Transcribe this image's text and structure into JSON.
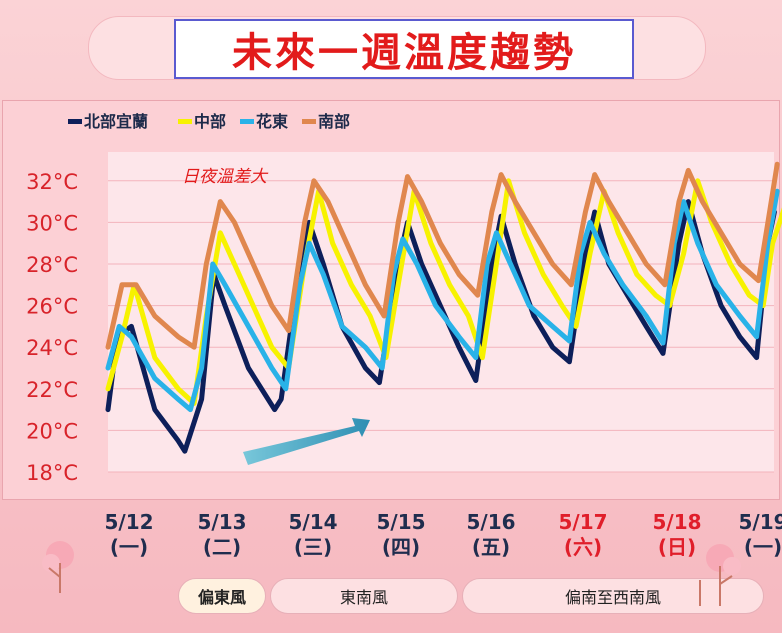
{
  "title": "未來一週溫度趨勢",
  "colors": {
    "north": "#0d1f5a",
    "central": "#f7f200",
    "east": "#29b2e8",
    "south": "#e0874e",
    "title_red": "#e21b1b",
    "weekend_red": "#e01e2a",
    "arrow": "#45a8c6"
  },
  "annotation": "日夜溫差大",
  "dates": [
    {
      "date": "5/12",
      "weekday": "(一)",
      "weekend": false
    },
    {
      "date": "5/13",
      "weekday": "(二)",
      "weekend": false
    },
    {
      "date": "5/14",
      "weekday": "(三)",
      "weekend": false
    },
    {
      "date": "5/15",
      "weekday": "(四)",
      "weekend": false
    },
    {
      "date": "5/16",
      "weekday": "(五)",
      "weekend": false
    },
    {
      "date": "5/17",
      "weekday": "(六)",
      "weekend": true
    },
    {
      "date": "5/18",
      "weekday": "(日)",
      "weekend": true
    },
    {
      "date": "5/19",
      "weekday": "(一)",
      "weekend": false
    }
  ],
  "winds": [
    "偏東風",
    "東南風",
    "偏南至西南風"
  ],
  "chart_data": {
    "type": "line",
    "ylim": [
      18,
      33
    ],
    "y_ticks": [
      "18°C",
      "20°C",
      "22°C",
      "24°C",
      "26°C",
      "28°C",
      "30°C",
      "32°C"
    ],
    "y_tick_values": [
      18,
      20,
      22,
      24,
      26,
      28,
      30,
      32
    ],
    "legend_position": "top-left",
    "x_unit": "day index from 5/12 00:00",
    "series": [
      {
        "name": "北部宜蘭",
        "color_key": "north",
        "points": [
          [
            0,
            21
          ],
          [
            0.1,
            24.5
          ],
          [
            0.25,
            25
          ],
          [
            0.5,
            21
          ],
          [
            0.75,
            19.5
          ],
          [
            0.82,
            19
          ],
          [
            1.0,
            21.5
          ],
          [
            1.13,
            27.5
          ],
          [
            1.25,
            26
          ],
          [
            1.5,
            23
          ],
          [
            1.78,
            21
          ],
          [
            1.85,
            21.5
          ],
          [
            2.05,
            28
          ],
          [
            2.15,
            30
          ],
          [
            2.3,
            28
          ],
          [
            2.5,
            25
          ],
          [
            2.75,
            23
          ],
          [
            2.9,
            22.3
          ],
          [
            3.1,
            28
          ],
          [
            3.2,
            30
          ],
          [
            3.35,
            28
          ],
          [
            3.55,
            26
          ],
          [
            3.75,
            24
          ],
          [
            3.93,
            22.4
          ],
          [
            4.1,
            28
          ],
          [
            4.2,
            30.3
          ],
          [
            4.35,
            28
          ],
          [
            4.55,
            25.5
          ],
          [
            4.75,
            24
          ],
          [
            4.93,
            23.3
          ],
          [
            5.1,
            28.5
          ],
          [
            5.2,
            30.5
          ],
          [
            5.35,
            28
          ],
          [
            5.55,
            26.5
          ],
          [
            5.75,
            25
          ],
          [
            5.93,
            23.7
          ],
          [
            6.1,
            29
          ],
          [
            6.2,
            31
          ],
          [
            6.35,
            28.5
          ],
          [
            6.55,
            26
          ],
          [
            6.75,
            24.5
          ],
          [
            6.93,
            23.5
          ],
          [
            7.05,
            29
          ],
          [
            7.12,
            30.5
          ]
        ]
      },
      {
        "name": "中部",
        "color_key": "central",
        "points": [
          [
            0,
            22
          ],
          [
            0.15,
            24.5
          ],
          [
            0.28,
            27
          ],
          [
            0.5,
            23.5
          ],
          [
            0.75,
            22
          ],
          [
            0.92,
            21.3
          ],
          [
            1.05,
            25.5
          ],
          [
            1.2,
            29.5
          ],
          [
            1.35,
            28
          ],
          [
            1.55,
            26
          ],
          [
            1.75,
            24
          ],
          [
            1.93,
            23
          ],
          [
            2.1,
            28
          ],
          [
            2.25,
            31.5
          ],
          [
            2.4,
            29
          ],
          [
            2.6,
            27
          ],
          [
            2.8,
            25.5
          ],
          [
            2.97,
            23.5
          ],
          [
            3.1,
            27
          ],
          [
            3.27,
            31.5
          ],
          [
            3.45,
            29
          ],
          [
            3.65,
            27
          ],
          [
            3.85,
            25.5
          ],
          [
            4.0,
            23.5
          ],
          [
            4.15,
            28
          ],
          [
            4.28,
            32
          ],
          [
            4.45,
            29.5
          ],
          [
            4.65,
            27.5
          ],
          [
            4.85,
            26
          ],
          [
            5.0,
            25
          ],
          [
            5.15,
            28.5
          ],
          [
            5.3,
            31.5
          ],
          [
            5.45,
            29.5
          ],
          [
            5.65,
            27.5
          ],
          [
            5.85,
            26.5
          ],
          [
            6.0,
            26
          ],
          [
            6.15,
            28.5
          ],
          [
            6.3,
            32
          ],
          [
            6.45,
            30
          ],
          [
            6.65,
            28
          ],
          [
            6.85,
            26.5
          ],
          [
            7.0,
            26
          ],
          [
            7.1,
            29
          ],
          [
            7.25,
            31
          ]
        ]
      },
      {
        "name": "花東",
        "color_key": "east",
        "points": [
          [
            0,
            23
          ],
          [
            0.12,
            25
          ],
          [
            0.25,
            24.5
          ],
          [
            0.5,
            22.5
          ],
          [
            0.75,
            21.5
          ],
          [
            0.88,
            21
          ],
          [
            1.0,
            23
          ],
          [
            1.12,
            28
          ],
          [
            1.25,
            27
          ],
          [
            1.5,
            25
          ],
          [
            1.75,
            23
          ],
          [
            1.9,
            22
          ],
          [
            2.05,
            27
          ],
          [
            2.15,
            29
          ],
          [
            2.3,
            27.5
          ],
          [
            2.5,
            25
          ],
          [
            2.75,
            24
          ],
          [
            2.93,
            23
          ],
          [
            3.05,
            27.5
          ],
          [
            3.15,
            29.2
          ],
          [
            3.3,
            28
          ],
          [
            3.5,
            26
          ],
          [
            3.75,
            24.5
          ],
          [
            3.93,
            23.5
          ],
          [
            4.05,
            28
          ],
          [
            4.15,
            29.5
          ],
          [
            4.3,
            28
          ],
          [
            4.5,
            26
          ],
          [
            4.75,
            25
          ],
          [
            4.93,
            24.3
          ],
          [
            5.05,
            28.5
          ],
          [
            5.15,
            30
          ],
          [
            5.3,
            28.5
          ],
          [
            5.5,
            27
          ],
          [
            5.75,
            25.5
          ],
          [
            5.93,
            24.2
          ],
          [
            6.05,
            29
          ],
          [
            6.15,
            31
          ],
          [
            6.3,
            29
          ],
          [
            6.5,
            27
          ],
          [
            6.75,
            25.5
          ],
          [
            6.93,
            24.5
          ],
          [
            7.05,
            29
          ],
          [
            7.15,
            31.5
          ]
        ]
      },
      {
        "name": "南部",
        "color_key": "south",
        "points": [
          [
            0,
            24
          ],
          [
            0.15,
            27
          ],
          [
            0.3,
            27
          ],
          [
            0.5,
            25.5
          ],
          [
            0.75,
            24.5
          ],
          [
            0.92,
            24
          ],
          [
            1.05,
            28
          ],
          [
            1.2,
            31
          ],
          [
            1.35,
            30
          ],
          [
            1.55,
            28
          ],
          [
            1.75,
            26
          ],
          [
            1.93,
            24.8
          ],
          [
            2.1,
            30
          ],
          [
            2.2,
            32
          ],
          [
            2.35,
            31
          ],
          [
            2.55,
            29
          ],
          [
            2.75,
            27
          ],
          [
            2.95,
            25.5
          ],
          [
            3.1,
            30
          ],
          [
            3.2,
            32.2
          ],
          [
            3.35,
            31
          ],
          [
            3.55,
            29
          ],
          [
            3.75,
            27.5
          ],
          [
            3.95,
            26.5
          ],
          [
            4.1,
            30.5
          ],
          [
            4.2,
            32.3
          ],
          [
            4.35,
            31
          ],
          [
            4.55,
            29.5
          ],
          [
            4.75,
            28
          ],
          [
            4.95,
            27
          ],
          [
            5.1,
            30.5
          ],
          [
            5.2,
            32.3
          ],
          [
            5.35,
            31
          ],
          [
            5.55,
            29.5
          ],
          [
            5.75,
            28
          ],
          [
            5.95,
            27
          ],
          [
            6.1,
            31
          ],
          [
            6.2,
            32.5
          ],
          [
            6.35,
            31
          ],
          [
            6.55,
            29.5
          ],
          [
            6.75,
            28
          ],
          [
            6.95,
            27.2
          ],
          [
            7.05,
            30
          ],
          [
            7.15,
            32.8
          ]
        ]
      }
    ]
  }
}
